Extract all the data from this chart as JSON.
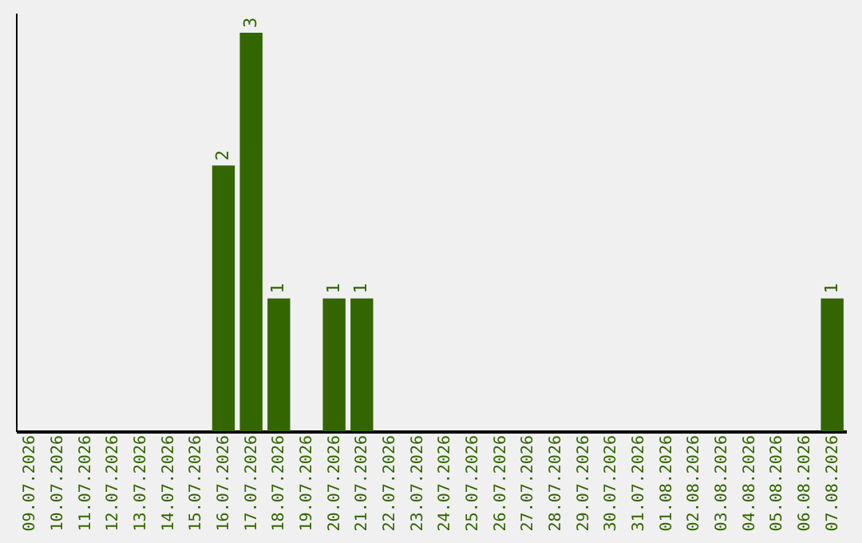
{
  "chart_data": {
    "type": "bar",
    "categories": [
      "09.07.2026",
      "10.07.2026",
      "11.07.2026",
      "12.07.2026",
      "13.07.2026",
      "14.07.2026",
      "15.07.2026",
      "16.07.2026",
      "17.07.2026",
      "18.07.2026",
      "19.07.2026",
      "20.07.2026",
      "21.07.2026",
      "22.07.2026",
      "23.07.2026",
      "24.07.2026",
      "25.07.2026",
      "26.07.2026",
      "27.07.2026",
      "28.07.2026",
      "29.07.2026",
      "30.07.2026",
      "31.07.2026",
      "01.08.2026",
      "02.08.2026",
      "03.08.2026",
      "04.08.2026",
      "05.08.2026",
      "06.08.2026",
      "07.08.2026"
    ],
    "values": [
      0,
      0,
      0,
      0,
      0,
      0,
      0,
      2,
      3,
      1,
      0,
      1,
      1,
      0,
      0,
      0,
      0,
      0,
      0,
      0,
      0,
      0,
      0,
      0,
      0,
      0,
      0,
      0,
      0,
      1
    ],
    "value_labels": [
      null,
      null,
      null,
      null,
      null,
      null,
      null,
      "2",
      "3",
      "1",
      null,
      "1",
      "1",
      null,
      null,
      null,
      null,
      null,
      null,
      null,
      null,
      null,
      null,
      null,
      null,
      null,
      null,
      null,
      null,
      "1"
    ],
    "color": "#336600",
    "ylim": [
      0,
      3.15
    ],
    "tick_labels": "x",
    "grid": false,
    "legend": false
  }
}
